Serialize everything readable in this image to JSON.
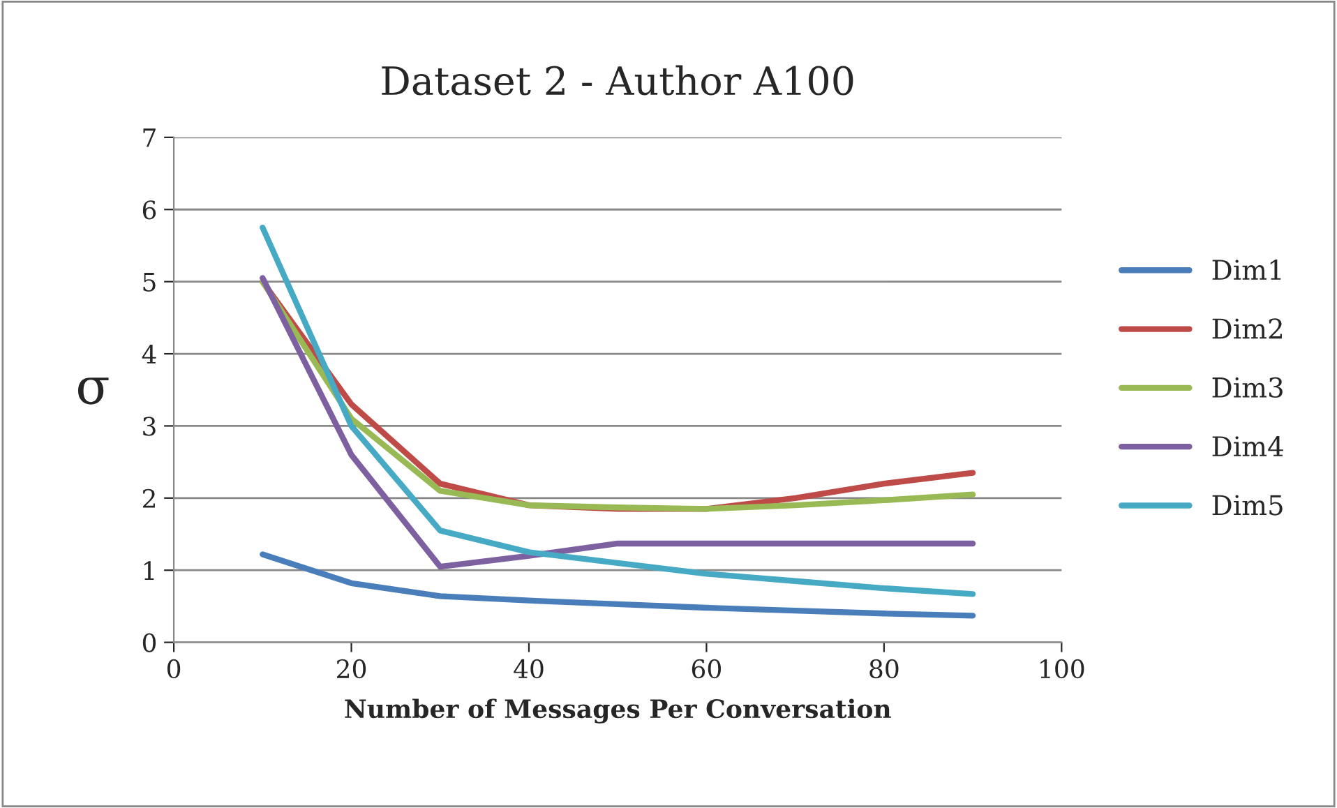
{
  "chart_data": {
    "type": "line",
    "title": "Dataset 2 - Author A100",
    "xlabel": "Number of Messages Per Conversation",
    "ylabel": "σ",
    "x": [
      10,
      20,
      30,
      40,
      50,
      60,
      70,
      80,
      90
    ],
    "series": [
      {
        "name": "Dim1",
        "color": "#4a7ebb",
        "values": [
          1.22,
          0.82,
          0.64,
          0.58,
          0.53,
          0.48,
          0.44,
          0.4,
          0.37
        ]
      },
      {
        "name": "Dim2",
        "color": "#be4b48",
        "values": [
          5.0,
          3.3,
          2.2,
          1.9,
          1.85,
          1.85,
          2.0,
          2.2,
          2.35
        ]
      },
      {
        "name": "Dim3",
        "color": "#98b954",
        "values": [
          5.0,
          3.1,
          2.1,
          1.9,
          1.87,
          1.85,
          1.9,
          1.97,
          2.05
        ]
      },
      {
        "name": "Dim4",
        "color": "#7d60a0",
        "values": [
          5.05,
          2.6,
          1.05,
          1.2,
          1.37,
          1.37,
          1.37,
          1.37,
          1.37
        ]
      },
      {
        "name": "Dim5",
        "color": "#46aac5",
        "values": [
          5.75,
          3.0,
          1.55,
          1.25,
          1.1,
          0.95,
          0.85,
          0.75,
          0.67
        ]
      }
    ],
    "xlim": [
      0,
      100
    ],
    "xticks": [
      0,
      20,
      40,
      60,
      80,
      100
    ],
    "ylim": [
      0,
      7
    ],
    "yticks": [
      0,
      1,
      2,
      3,
      4,
      5,
      6,
      7
    ],
    "grid": "y",
    "legend": "right",
    "marker": "none",
    "line_style": "solid"
  }
}
